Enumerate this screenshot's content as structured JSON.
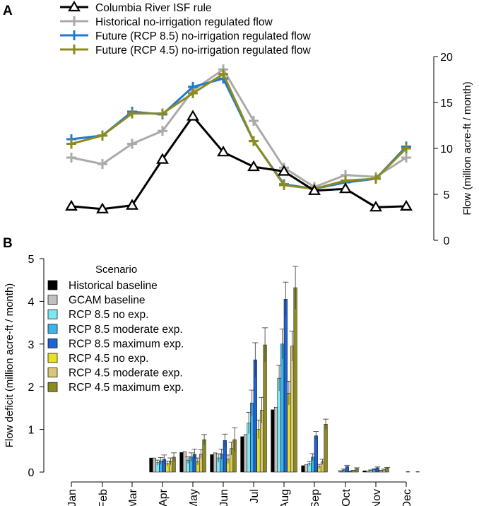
{
  "chart_data": [
    {
      "panel_label": "A",
      "type": "line",
      "ylabel": "Flow (million acre-ft / month)",
      "ylim": [
        0,
        20
      ],
      "yticks": [
        "0",
        "5",
        "10",
        "15",
        "20"
      ],
      "categories": [
        "Jan",
        "Feb",
        "Mar",
        "Apr",
        "May",
        "Jun",
        "Jul",
        "Aug",
        "Sep",
        "Oct",
        "Nov",
        "Dec"
      ],
      "legend_position": "top-left",
      "series": [
        {
          "name": "Columbia River ISF rule",
          "color": "#000000",
          "marker": "triangle",
          "values": [
            3.7,
            3.4,
            3.8,
            8.8,
            13.5,
            9.6,
            8.0,
            7.5,
            5.4,
            5.6,
            3.6,
            3.7
          ]
        },
        {
          "name": "Historical no-irrigation regulated flow",
          "color": "#aaaaaa",
          "marker": "plus",
          "values": [
            9.0,
            8.3,
            10.5,
            11.9,
            16.3,
            18.6,
            13.0,
            7.9,
            5.8,
            7.1,
            6.9,
            9.0
          ]
        },
        {
          "name": "Future (RCP 8.5) no-irrigation regulated flow",
          "color": "#1f78d6",
          "marker": "plus",
          "values": [
            11.0,
            11.4,
            14.0,
            13.7,
            16.7,
            17.6,
            10.8,
            6.1,
            5.6,
            6.3,
            6.7,
            10.2
          ]
        },
        {
          "name": "Future (RCP 4.5) no-irrigation regulated flow",
          "color": "#8c8c1e",
          "marker": "plus",
          "values": [
            10.5,
            11.4,
            13.8,
            13.8,
            16.0,
            18.1,
            10.8,
            6.0,
            5.6,
            6.5,
            6.7,
            10.0
          ]
        }
      ]
    },
    {
      "panel_label": "B",
      "type": "bar",
      "ylabel": "Flow deficit (million acre-ft / month)",
      "ylim": [
        0,
        5
      ],
      "yticks": [
        "0",
        "1",
        "2",
        "3",
        "4",
        "5"
      ],
      "categories": [
        "Jan",
        "Feb",
        "Mar",
        "Apr",
        "May",
        "Jun",
        "Jul",
        "Aug",
        "Sep",
        "Oct",
        "Nov",
        "Dec"
      ],
      "legend_title": "Scenario",
      "legend_position": "top-left",
      "series": [
        {
          "name": "Historical baseline",
          "color": "#000000",
          "values": [
            0,
            0,
            0,
            0.33,
            0.46,
            0.41,
            0.83,
            1.46,
            0.15,
            0.0,
            0.03,
            0
          ],
          "errors": [
            0,
            0,
            0,
            0,
            0,
            0,
            0,
            0,
            0,
            0,
            0,
            0
          ]
        },
        {
          "name": "GCAM baseline",
          "color": "#c0c0c0",
          "values": [
            0,
            0,
            0,
            0.33,
            0.48,
            0.45,
            0.88,
            1.52,
            0.18,
            0.0,
            0.03,
            0
          ],
          "errors": [
            0,
            0,
            0,
            0,
            0,
            0,
            0,
            0,
            0,
            0,
            0,
            0
          ]
        },
        {
          "name": "RCP 8.5 no exp.",
          "color": "#7fe7f2",
          "values": [
            0,
            0,
            0,
            0.22,
            0.28,
            0.33,
            1.15,
            2.2,
            0.2,
            0.02,
            0.04,
            0
          ],
          "errors": [
            0,
            0,
            0,
            0.06,
            0.08,
            0.1,
            0.25,
            0.3,
            0.05,
            0.01,
            0.01,
            0
          ]
        },
        {
          "name": "RCP 8.5 moderate exp.",
          "color": "#3fb2ec",
          "values": [
            0,
            0,
            0,
            0.26,
            0.35,
            0.42,
            1.62,
            3.0,
            0.35,
            0.05,
            0.06,
            0
          ],
          "errors": [
            0,
            0,
            0,
            0.08,
            0.1,
            0.12,
            0.3,
            0.35,
            0.08,
            0.02,
            0.02,
            0
          ]
        },
        {
          "name": "RCP 8.5 maximum exp.",
          "color": "#1f63d4",
          "values": [
            0,
            0,
            0,
            0.3,
            0.42,
            0.74,
            2.63,
            4.05,
            0.85,
            0.13,
            0.1,
            0.01
          ],
          "errors": [
            0,
            0,
            0,
            0.1,
            0.12,
            0.15,
            0.4,
            0.4,
            0.1,
            0.03,
            0.02,
            0
          ]
        },
        {
          "name": "RCP 4.5 no exp.",
          "color": "#e8e022",
          "values": [
            0,
            0,
            0,
            0.2,
            0.25,
            0.3,
            1.0,
            1.85,
            0.13,
            0.01,
            0.03,
            0
          ],
          "errors": [
            0,
            0,
            0,
            0.06,
            0.08,
            0.1,
            0.22,
            0.28,
            0.05,
            0.01,
            0.01,
            0
          ]
        },
        {
          "name": "RCP 4.5 moderate exp.",
          "color": "#d8c77a",
          "values": [
            0,
            0,
            0,
            0.25,
            0.42,
            0.55,
            1.45,
            2.95,
            0.24,
            0.03,
            0.05,
            0
          ],
          "errors": [
            0,
            0,
            0,
            0.08,
            0.1,
            0.15,
            0.3,
            0.35,
            0.06,
            0.01,
            0.02,
            0
          ]
        },
        {
          "name": "RCP 4.5 maximum exp.",
          "color": "#8c8c1e",
          "values": [
            0,
            0,
            0,
            0.35,
            0.76,
            0.76,
            2.98,
            4.32,
            1.12,
            0.08,
            0.09,
            0.01
          ],
          "errors": [
            0,
            0,
            0,
            0.1,
            0.12,
            0.28,
            0.4,
            0.5,
            0.12,
            0.02,
            0.02,
            0
          ]
        }
      ]
    }
  ]
}
